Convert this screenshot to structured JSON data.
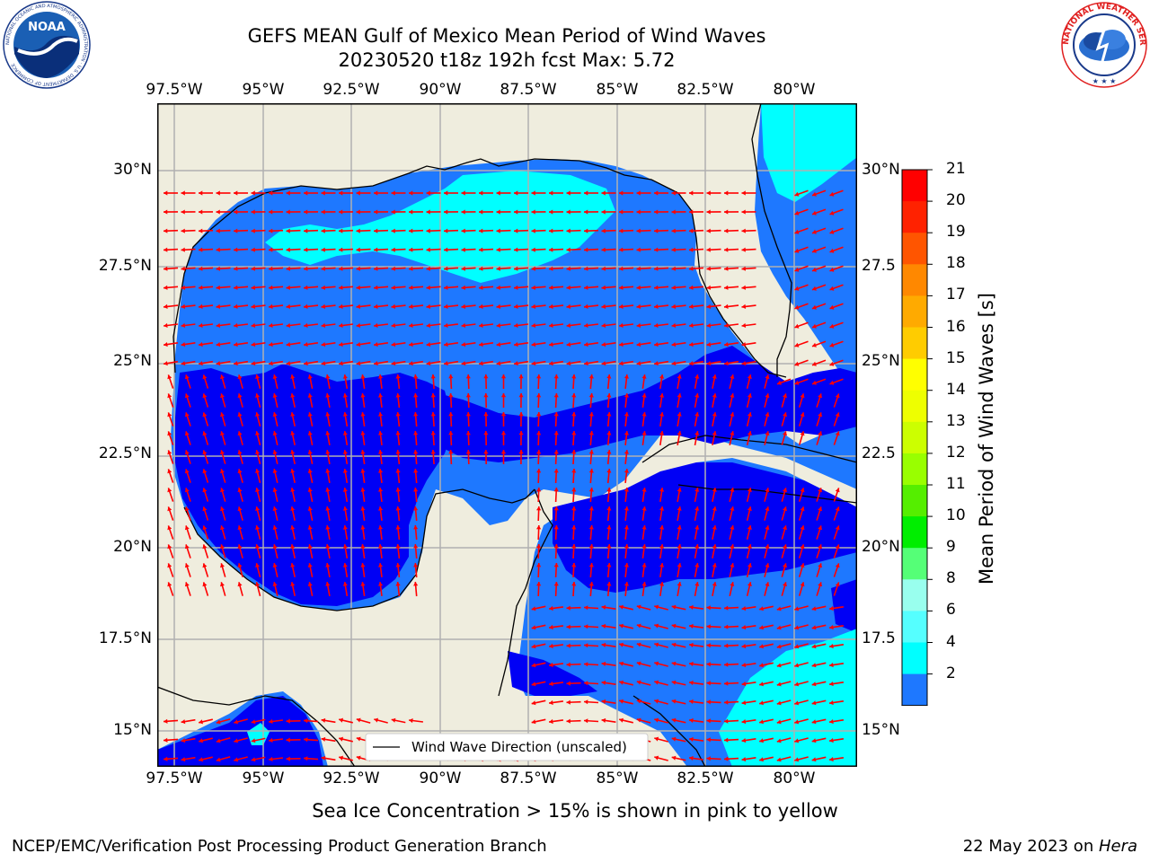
{
  "title": {
    "line1": "GEFS MEAN Gulf of Mexico Mean Period of Wind Waves",
    "line2": "20230520 t18z 192h fcst   Max: 5.72"
  },
  "map": {
    "lon_ticks": [
      "97.5°W",
      "95°W",
      "92.5°W",
      "90°W",
      "87.5°W",
      "85°W",
      "82.5°W",
      "80°W"
    ],
    "lat_ticks_left": [
      "30°N",
      "27.5°N",
      "25°N",
      "22.5°N",
      "20°N",
      "17.5°N",
      "15°N"
    ],
    "lat_ticks_right": [
      "30°N",
      "27.5",
      "25°N",
      "22.5",
      "20°N",
      "17.5",
      "15°N"
    ],
    "legend_label": "Wind Wave Direction (unscaled)",
    "colors": {
      "land": "#EFEDDE",
      "ocean_low": "#0000F5",
      "ocean_mid": "#1E78FF",
      "ocean_high": "#00FFFF",
      "arrow": "#FF0000",
      "grid": "#B0B0B0"
    }
  },
  "colorbar": {
    "title": "Mean Period of Wind Waves [s]",
    "labels": [
      "21",
      "20",
      "19",
      "18",
      "17",
      "16",
      "15",
      "14",
      "13",
      "12",
      "11",
      "10",
      "9",
      "8",
      "6",
      "4",
      "2"
    ],
    "colors": [
      "#FF0000",
      "#FF2200",
      "#FF5500",
      "#FF8800",
      "#FFAA00",
      "#FFCC00",
      "#FFFF00",
      "#EEFF00",
      "#CCFF00",
      "#99FF00",
      "#55EE00",
      "#00EE00",
      "#55FF77",
      "#99FFEE",
      "#55FFFF",
      "#00FFFF",
      "#1E78FF",
      "#0000F5"
    ]
  },
  "logos": {
    "noaa_text": "NOAA",
    "noaa_ring": "NATIONAL OCEANIC AND ATMOSPHERIC ADMINISTRATION · U.S. DEPARTMENT OF COMMERCE",
    "nws_ring": "NATIONAL WEATHER SERVICE"
  },
  "subtitle": "Sea Ice Concentration > 15% is shown in pink to yellow",
  "footer": {
    "left": "NCEP/EMC/Verification Post Processing Product Generation Branch",
    "right_prefix": "22 May 2023 on ",
    "right_host": "Hera"
  }
}
